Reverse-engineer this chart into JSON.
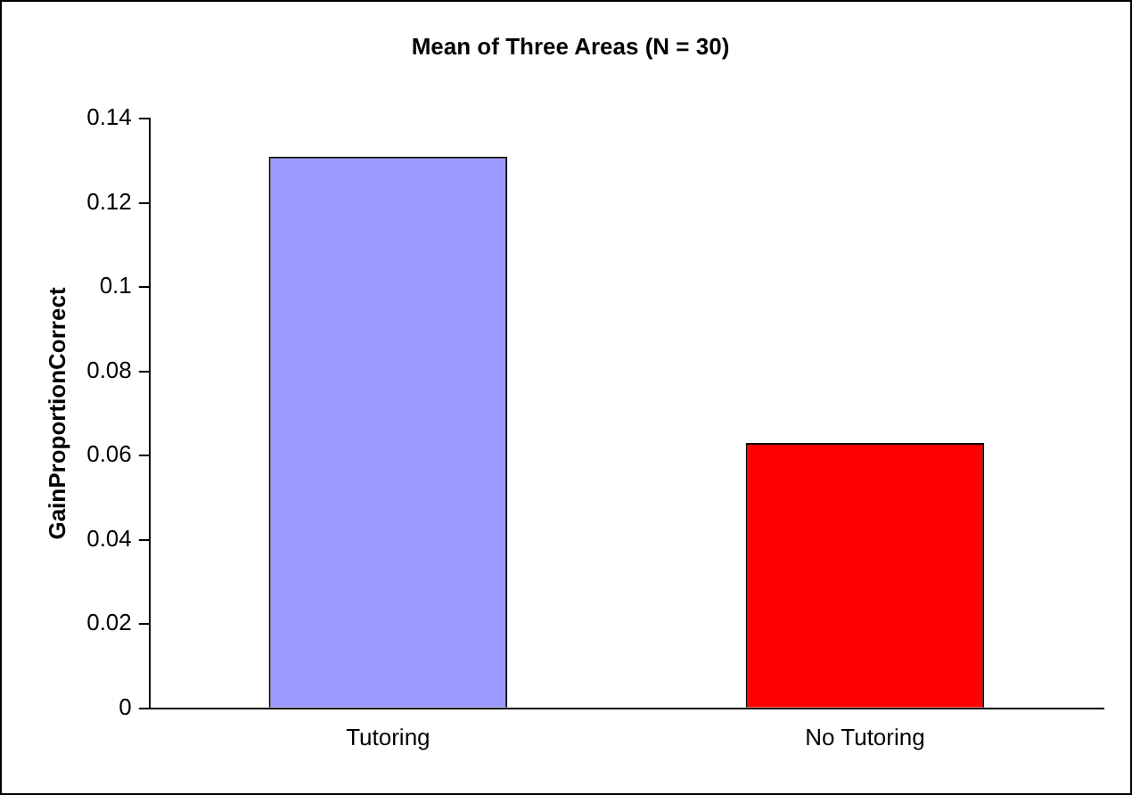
{
  "chart_data": {
    "type": "bar",
    "title": "Mean of Three Areas (N = 30)",
    "ylabel": "GainProportionCorrect",
    "categories": [
      "Tutoring",
      "No Tutoring"
    ],
    "values": [
      0.131,
      0.063
    ],
    "colors": [
      "#9999ff",
      "#ff0000"
    ],
    "ylim": [
      0,
      0.14
    ],
    "yticks": [
      0,
      0.02,
      0.04,
      0.06,
      0.08,
      0.1,
      0.12,
      0.14
    ],
    "grid": false,
    "legend": false
  }
}
